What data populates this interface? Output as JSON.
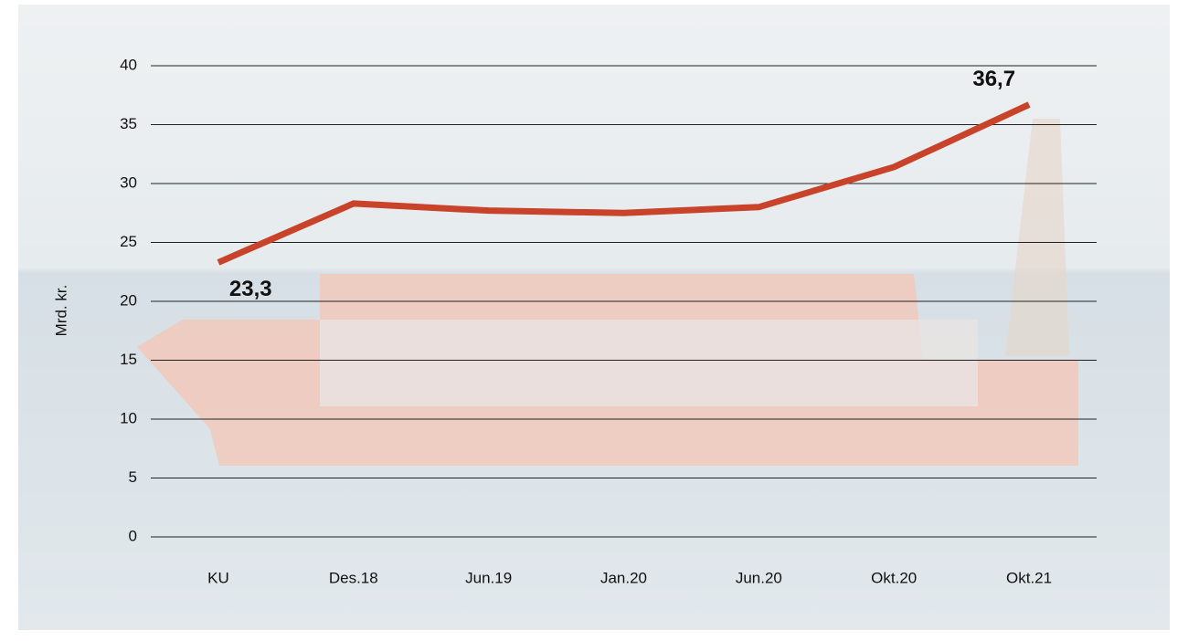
{
  "chart_data": {
    "type": "line",
    "y_label": "Mrd. kr.",
    "categories": [
      "KU",
      "Des.18",
      "Jun.19",
      "Jan.20",
      "Jun.20",
      "Okt.20",
      "Okt.21"
    ],
    "series": [
      {
        "color": "#c8432a",
        "values": [
          23.3,
          28.3,
          27.7,
          27.5,
          28.0,
          31.4,
          36.7
        ],
        "value_labels": [
          "23,3",
          null,
          null,
          null,
          null,
          null,
          "36,7"
        ]
      }
    ],
    "ylim": [
      0,
      40
    ],
    "yticks": [
      0,
      5,
      10,
      15,
      20,
      25,
      30,
      35,
      40
    ],
    "grid": true
  }
}
